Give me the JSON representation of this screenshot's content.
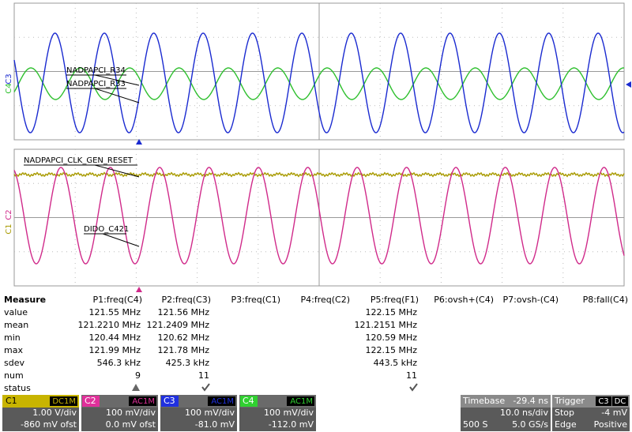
{
  "waveform_labels": [
    "NADPAPCI_R34",
    "NADPAPCI_R33",
    "NADPAPCI_CLK_GEN_RESET",
    "DIDO_C421"
  ],
  "trace_labels": {
    "top": [
      "C3",
      "C4"
    ],
    "bottom": [
      "C2",
      "C1"
    ]
  },
  "measure": {
    "title": "Measure",
    "headers": [
      "P1:freq(C4)",
      "P2:freq(C3)",
      "P3:freq(C1)",
      "P4:freq(C2)",
      "P5:freq(F1)",
      "P6:ovsh+(C4)",
      "P7:ovsh-(C4)",
      "P8:fall(C4)"
    ],
    "rows": [
      {
        "label": "value",
        "cells": [
          "121.55 MHz",
          "121.56 MHz",
          null,
          null,
          "122.15 MHz",
          null,
          null,
          null
        ]
      },
      {
        "label": "mean",
        "cells": [
          "121.2210 MHz",
          "121.2409 MHz",
          null,
          null,
          "121.2151 MHz",
          null,
          null,
          null
        ]
      },
      {
        "label": "min",
        "cells": [
          "120.44 MHz",
          "120.62 MHz",
          null,
          null,
          "120.59 MHz",
          null,
          null,
          null
        ]
      },
      {
        "label": "max",
        "cells": [
          "121.99 MHz",
          "121.78 MHz",
          null,
          null,
          "122.15 MHz",
          null,
          null,
          null
        ]
      },
      {
        "label": "sdev",
        "cells": [
          "546.3 kHz",
          "425.3 kHz",
          null,
          null,
          "443.5 kHz",
          null,
          null,
          null
        ]
      },
      {
        "label": "num",
        "cells": [
          "9",
          "11",
          null,
          null,
          "11",
          null,
          null,
          null
        ]
      },
      {
        "label": "status"
      }
    ]
  },
  "channels": [
    {
      "name": "C1",
      "coupling": "DC1M",
      "scale": "1.00 V/div",
      "offset": "-860 mV ofst"
    },
    {
      "name": "C2",
      "coupling": "AC1M",
      "scale": "100 mV/div",
      "offset": "0.0 mV ofst"
    },
    {
      "name": "C3",
      "coupling": "AC1M",
      "scale": "100 mV/div",
      "offset": "-81.0 mV"
    },
    {
      "name": "C4",
      "coupling": "AC1M",
      "scale": "100 mV/div",
      "offset": "-112.0 mV"
    }
  ],
  "timebase": {
    "title": "Timebase",
    "delay": "-29.4 ns",
    "scale": "10.0 ns/div",
    "samples": "500 S",
    "rate": "5.0 GS/s"
  },
  "trigger": {
    "title": "Trigger",
    "source": "C3",
    "coupling": "DC",
    "mode": "Stop",
    "level": "-4 mV",
    "type": "Edge",
    "slope": "Positive"
  }
}
